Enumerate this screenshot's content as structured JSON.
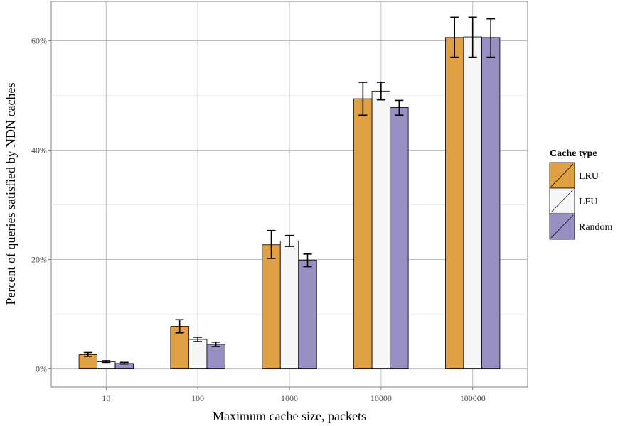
{
  "chart_data": {
    "type": "bar",
    "title": "",
    "xlabel": "Maximum cache size, packets",
    "ylabel": "Percent of queries satisfied by NDN caches",
    "categories": [
      "10",
      "100",
      "1000",
      "10000",
      "100000"
    ],
    "ylim": [
      -3.3,
      67.2
    ],
    "yticks": [
      0,
      20,
      40,
      60
    ],
    "ytick_labels": [
      "0%",
      "20%",
      "40%",
      "60%"
    ],
    "minor_grid": [
      10,
      30,
      50
    ],
    "grid": true,
    "legend": {
      "title": "Cache type",
      "placement": "right"
    },
    "series": [
      {
        "name": "LRU",
        "color": "#E0A044",
        "values": [
          2.6,
          7.8,
          22.7,
          49.4,
          60.6
        ],
        "err_low": [
          2.3,
          6.6,
          20.2,
          46.4,
          57.0
        ],
        "err_high": [
          3.0,
          9.0,
          25.3,
          52.4,
          64.3
        ]
      },
      {
        "name": "LFU",
        "color": "#F7F7F7",
        "values": [
          1.3,
          5.4,
          23.4,
          50.8,
          60.7
        ],
        "err_low": [
          1.2,
          5.0,
          22.4,
          49.2,
          57.0
        ],
        "err_high": [
          1.5,
          5.8,
          24.4,
          52.4,
          64.3
        ]
      },
      {
        "name": "Random",
        "color": "#9790C2",
        "values": [
          1.0,
          4.5,
          19.9,
          47.8,
          60.6
        ],
        "err_low": [
          0.9,
          4.1,
          18.7,
          46.4,
          57.0
        ],
        "err_high": [
          1.2,
          4.9,
          21.0,
          49.1,
          64.0
        ]
      }
    ]
  }
}
